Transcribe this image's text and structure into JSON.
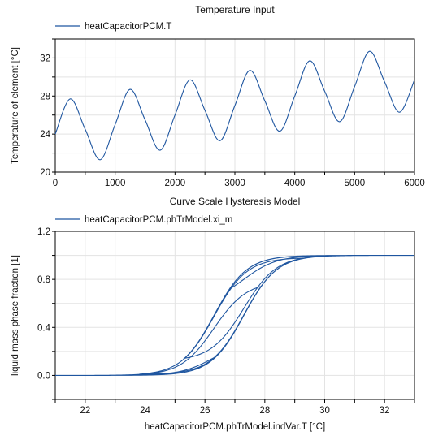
{
  "chart_data": [
    {
      "type": "line",
      "title": "Temperature Input",
      "xlabel": "",
      "ylabel": "Temperature of element  [°C]",
      "xlim": [
        0,
        6000
      ],
      "ylim": [
        20,
        34
      ],
      "xticks": [
        0,
        1000,
        2000,
        3000,
        4000,
        5000,
        6000
      ],
      "yticks": [
        20,
        24,
        28,
        32
      ],
      "grid": true,
      "legend_position": "top-left",
      "series": [
        {
          "name": "heatCapacitorPCM.T",
          "color": "#1f56a0",
          "x": [
            0,
            250,
            500,
            750,
            1000,
            1250,
            1500,
            1750,
            2000,
            2250,
            2500,
            2750,
            3000,
            3250,
            3500,
            3750,
            4000,
            4250,
            4500,
            4750,
            5000,
            5250,
            5500,
            5750,
            6000
          ],
          "y": [
            24.0,
            27.7,
            24.5,
            21.3,
            25.0,
            28.7,
            25.5,
            22.3,
            26.0,
            29.7,
            26.5,
            23.3,
            27.0,
            30.7,
            27.5,
            24.3,
            28.0,
            31.7,
            28.5,
            25.3,
            29.0,
            32.7,
            29.5,
            26.3,
            29.7
          ]
        }
      ]
    },
    {
      "type": "line",
      "title": "Curve Scale Hysteresis Model",
      "xlabel": "heatCapacitorPCM.phTrModel.indVar.T [°C]",
      "ylabel": "liquid mass phase fraction  [1]",
      "xlim": [
        21,
        33
      ],
      "ylim": [
        -0.2,
        1.2
      ],
      "xticks": [
        22,
        24,
        26,
        28,
        30,
        32
      ],
      "yticks": [
        0.0,
        0.4,
        0.8,
        1.2
      ],
      "ytick_labels": [
        "0.0",
        "0.4",
        "0.8",
        "1.2"
      ],
      "grid": true,
      "legend_position": "top-left",
      "series": [
        {
          "name": "heatCapacitorPCM.phTrModel.xi_m",
          "color": "#1f56a0",
          "x": [
            21.3,
            22,
            23,
            24,
            24.5,
            25.0,
            25.5,
            26.0,
            26.5,
            27.0,
            27.5,
            28.0,
            28.5,
            29.0,
            29.5,
            30,
            31,
            32,
            32.7
          ],
          "y": [
            0.0,
            0.0,
            0.0,
            0.0,
            0.0,
            0.02,
            0.1,
            0.25,
            0.45,
            0.63,
            0.8,
            0.92,
            0.98,
            1.0,
            1.0,
            1.0,
            1.0,
            1.0,
            1.0
          ]
        }
      ]
    }
  ]
}
